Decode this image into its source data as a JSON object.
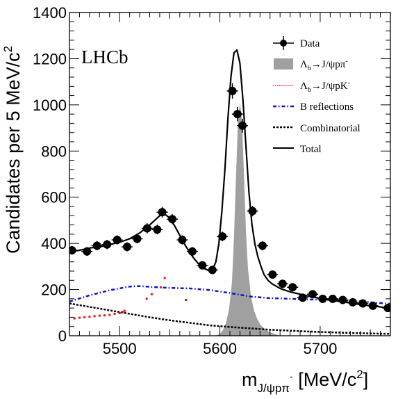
{
  "chart_data": {
    "type": "scatter",
    "title": "",
    "experiment_label": "LHCb",
    "xlabel": {
      "main": "m",
      "sub": "J/ψpπ",
      "sup": "-",
      "unit_pre": " [MeV/c",
      "unit_sup": "2",
      "unit_post": "]"
    },
    "ylabel": {
      "main": "Candidates per 5 MeV/c",
      "sup": "2"
    },
    "xlim": [
      5450,
      5770
    ],
    "ylim": [
      0,
      1400
    ],
    "xticks": [
      5500,
      5600,
      5700
    ],
    "yticks": [
      0,
      200,
      400,
      600,
      800,
      1000,
      1200,
      1400
    ],
    "legend": {
      "position": "top-right",
      "entries": [
        {
          "key": "data",
          "label": "Data"
        },
        {
          "key": "signal",
          "label_main": "Λ",
          "label_sub": "b",
          "label_rest": "→J/ψpπ",
          "label_sup": "-"
        },
        {
          "key": "kaon",
          "label_main": "Λ",
          "label_sub": "b",
          "label_rest": "→J/ψpK",
          "label_sup": "-"
        },
        {
          "key": "brefl",
          "label": "B reflections"
        },
        {
          "key": "comb",
          "label": "Combinatorial"
        },
        {
          "key": "total",
          "label": "Total"
        }
      ]
    },
    "colors": {
      "data": "#000000",
      "signal": "#a0a0a0",
      "kaon": "#e8140c",
      "brefl": "#0a14c8",
      "comb": "#000000",
      "total": "#000000"
    },
    "series": [
      {
        "key": "data",
        "type": "points_with_errors",
        "x": [
          5452.5,
          5467.5,
          5477.5,
          5487.5,
          5497.5,
          5507.5,
          5517.5,
          5527.5,
          5537.5,
          5542.5,
          5552.5,
          5562.5,
          5572.5,
          5582.5,
          5592.5,
          5602.5,
          5612.5,
          5617.5,
          5622.5,
          5632.5,
          5642.5,
          5652.5,
          5662.5,
          5672.5,
          5682.5,
          5692.5,
          5702.5,
          5712.5,
          5722.5,
          5732.5,
          5742.5,
          5752.5,
          5767.5
        ],
        "y": [
          370,
          365,
          390,
          395,
          415,
          385,
          420,
          465,
          460,
          535,
          505,
          415,
          365,
          305,
          285,
          430,
          1060,
          960,
          910,
          540,
          390,
          265,
          225,
          210,
          165,
          180,
          160,
          160,
          155,
          145,
          140,
          130,
          120
        ],
        "yerr": [
          19,
          19,
          20,
          20,
          20,
          20,
          20,
          22,
          21,
          23,
          22,
          20,
          19,
          17,
          17,
          21,
          33,
          31,
          30,
          23,
          20,
          16,
          15,
          14,
          13,
          13,
          13,
          13,
          12,
          12,
          12,
          11,
          11
        ]
      },
      {
        "key": "signal",
        "type": "filled_area",
        "x": [
          5595,
          5600,
          5603,
          5606,
          5609,
          5612,
          5614,
          5616,
          5618,
          5620,
          5622,
          5624,
          5626,
          5628,
          5631,
          5634,
          5637,
          5640,
          5645,
          5650,
          5655,
          5660
        ],
        "y": [
          0,
          8,
          25,
          55,
          110,
          230,
          420,
          680,
          930,
          1010,
          930,
          700,
          450,
          290,
          170,
          110,
          75,
          50,
          28,
          15,
          7,
          0
        ]
      },
      {
        "key": "kaon",
        "type": "sparse_points",
        "x": [
          5455,
          5460,
          5465,
          5470,
          5475,
          5480,
          5485,
          5490,
          5495,
          5500,
          5503,
          5505,
          5527,
          5532,
          5541,
          5545,
          5566
        ],
        "y": [
          75,
          78,
          80,
          82,
          85,
          87,
          88,
          90,
          95,
          98,
          103,
          108,
          160,
          180,
          210,
          250,
          155
        ]
      },
      {
        "key": "brefl",
        "type": "line",
        "x": [
          5450,
          5470,
          5490,
          5500,
          5510,
          5520,
          5530,
          5550,
          5570,
          5590,
          5610,
          5630,
          5650,
          5670,
          5690,
          5710,
          5730,
          5750,
          5770
        ],
        "y": [
          148,
          175,
          197,
          205,
          213,
          215,
          212,
          207,
          205,
          198,
          185,
          170,
          163,
          160,
          157,
          155,
          152,
          145,
          138
        ]
      },
      {
        "key": "comb",
        "type": "line",
        "x": [
          5450,
          5470,
          5490,
          5510,
          5530,
          5550,
          5570,
          5590,
          5610,
          5630,
          5650,
          5670,
          5690,
          5710,
          5730,
          5750,
          5770
        ],
        "y": [
          140,
          125,
          110,
          95,
          80,
          67,
          56,
          45,
          38,
          32,
          26,
          22,
          18,
          15,
          12,
          10,
          8
        ]
      },
      {
        "key": "total",
        "type": "line",
        "x": [
          5450,
          5460,
          5470,
          5480,
          5490,
          5500,
          5510,
          5520,
          5530,
          5540,
          5545,
          5550,
          5555,
          5560,
          5565,
          5570,
          5575,
          5580,
          5585,
          5590,
          5593,
          5596,
          5599,
          5602,
          5605,
          5608,
          5611,
          5614,
          5617,
          5620,
          5623,
          5626,
          5629,
          5632,
          5635,
          5638,
          5641,
          5644,
          5648,
          5652,
          5656,
          5660,
          5670,
          5680,
          5690,
          5700,
          5710,
          5720,
          5730,
          5740,
          5750,
          5760,
          5770
        ],
        "y": [
          365,
          370,
          380,
          385,
          395,
          405,
          420,
          445,
          480,
          520,
          527,
          510,
          475,
          435,
          395,
          360,
          330,
          305,
          290,
          280,
          290,
          320,
          400,
          540,
          720,
          940,
          1120,
          1225,
          1238,
          1180,
          1020,
          820,
          620,
          480,
          395,
          340,
          300,
          265,
          240,
          225,
          215,
          205,
          190,
          180,
          170,
          162,
          155,
          148,
          142,
          135,
          130,
          125,
          118
        ]
      }
    ]
  }
}
